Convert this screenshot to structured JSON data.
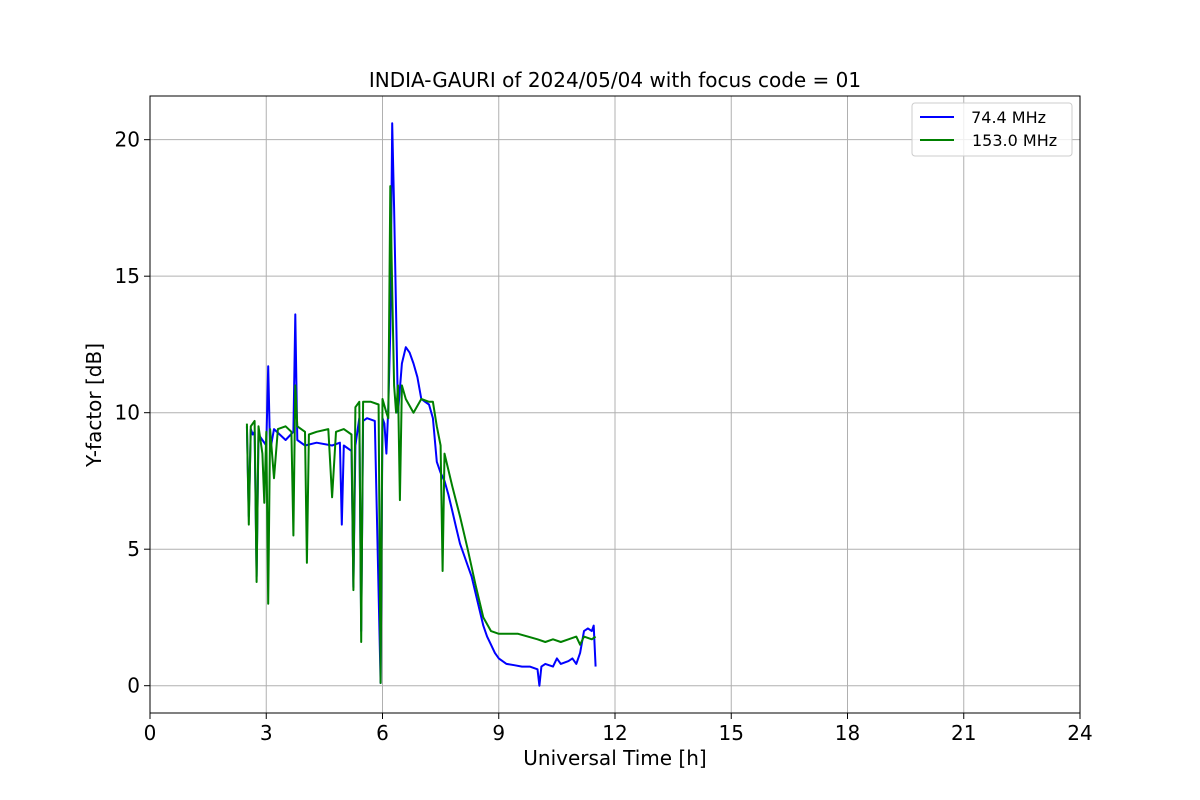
{
  "chart_data": {
    "type": "line",
    "title": "INDIA-GAURI of 2024/05/04 with focus code = 01",
    "xlabel": "Universal Time [h]",
    "ylabel": "Y-factor [dB]",
    "xlim": [
      0,
      24
    ],
    "ylim": [
      -1.0,
      21.6
    ],
    "xticks": [
      0,
      3,
      6,
      9,
      12,
      15,
      18,
      21,
      24
    ],
    "yticks": [
      0,
      5,
      10,
      15,
      20
    ],
    "grid": true,
    "legend_position": "top-right",
    "series": [
      {
        "name": " 74.4 MHz",
        "color": "#0000ff",
        "x": [
          2.5,
          2.55,
          2.6,
          2.65,
          2.7,
          2.75,
          2.8,
          3.0,
          3.05,
          3.1,
          3.2,
          3.5,
          3.7,
          3.75,
          3.8,
          4.0,
          4.3,
          4.7,
          4.9,
          4.95,
          5.0,
          5.2,
          5.25,
          5.3,
          5.4,
          5.45,
          5.5,
          5.6,
          5.8,
          5.95,
          6.0,
          6.05,
          6.1,
          6.15,
          6.2,
          6.25,
          6.3,
          6.4,
          6.5,
          6.6,
          6.7,
          6.8,
          6.9,
          7.0,
          7.1,
          7.2,
          7.3,
          7.4,
          7.5,
          7.6,
          7.7,
          7.8,
          7.9,
          8.0,
          8.1,
          8.2,
          8.3,
          8.4,
          8.5,
          8.6,
          8.7,
          8.8,
          8.9,
          9.0,
          9.2,
          9.4,
          9.6,
          9.8,
          10.0,
          10.05,
          10.1,
          10.2,
          10.4,
          10.5,
          10.6,
          10.8,
          10.9,
          11.0,
          11.1,
          11.2,
          11.3,
          11.4,
          11.45,
          11.5
        ],
        "y": [
          9.5,
          6.2,
          9.4,
          9.2,
          9.3,
          4.0,
          9.2,
          8.8,
          11.7,
          8.6,
          9.4,
          9.0,
          9.3,
          13.6,
          9.0,
          8.8,
          8.9,
          8.8,
          8.9,
          5.9,
          8.8,
          8.6,
          3.6,
          8.8,
          9.8,
          2.0,
          9.7,
          9.8,
          9.7,
          0.1,
          9.8,
          9.6,
          8.5,
          10.2,
          13.0,
          20.6,
          17.5,
          10.0,
          11.8,
          12.4,
          12.2,
          11.8,
          11.3,
          10.5,
          10.4,
          10.3,
          9.8,
          8.2,
          7.8,
          7.5,
          7.0,
          6.4,
          5.8,
          5.2,
          4.8,
          4.4,
          4.0,
          3.4,
          2.8,
          2.2,
          1.8,
          1.5,
          1.2,
          1.0,
          0.8,
          0.75,
          0.7,
          0.7,
          0.6,
          0.0,
          0.7,
          0.8,
          0.7,
          1.0,
          0.8,
          0.9,
          1.0,
          0.8,
          1.2,
          2.0,
          2.1,
          2.0,
          2.2,
          0.7
        ]
      },
      {
        "name": "153.0 MHz",
        "color": "#008000",
        "x": [
          2.5,
          2.55,
          2.6,
          2.7,
          2.75,
          2.8,
          2.9,
          2.95,
          3.0,
          3.05,
          3.1,
          3.2,
          3.3,
          3.5,
          3.65,
          3.7,
          3.75,
          3.8,
          4.0,
          4.05,
          4.1,
          4.3,
          4.6,
          4.7,
          4.8,
          5.0,
          5.2,
          5.25,
          5.3,
          5.4,
          5.45,
          5.5,
          5.7,
          5.9,
          5.95,
          6.0,
          6.1,
          6.15,
          6.2,
          6.25,
          6.3,
          6.35,
          6.4,
          6.45,
          6.5,
          6.6,
          6.8,
          7.0,
          7.2,
          7.3,
          7.4,
          7.5,
          7.55,
          7.6,
          7.8,
          8.0,
          8.2,
          8.4,
          8.6,
          8.8,
          9.0,
          9.5,
          10.0,
          10.2,
          10.4,
          10.6,
          10.8,
          11.0,
          11.1,
          11.2,
          11.4,
          11.5
        ],
        "y": [
          9.6,
          5.9,
          9.5,
          9.7,
          3.8,
          9.5,
          8.5,
          6.7,
          9.3,
          3.0,
          9.4,
          7.6,
          9.4,
          9.5,
          9.3,
          5.5,
          11.0,
          9.5,
          9.3,
          4.5,
          9.2,
          9.3,
          9.4,
          6.9,
          9.3,
          9.4,
          9.2,
          3.5,
          10.2,
          10.4,
          1.6,
          10.4,
          10.4,
          10.3,
          0.1,
          10.5,
          10.0,
          9.8,
          18.3,
          14.5,
          11.0,
          10.0,
          11.0,
          6.8,
          11.0,
          10.5,
          10.0,
          10.5,
          10.4,
          10.4,
          9.5,
          8.8,
          4.2,
          8.5,
          7.3,
          6.2,
          5.0,
          3.7,
          2.5,
          2.0,
          1.9,
          1.9,
          1.7,
          1.6,
          1.7,
          1.6,
          1.7,
          1.8,
          1.5,
          1.8,
          1.7,
          1.8
        ]
      }
    ]
  }
}
